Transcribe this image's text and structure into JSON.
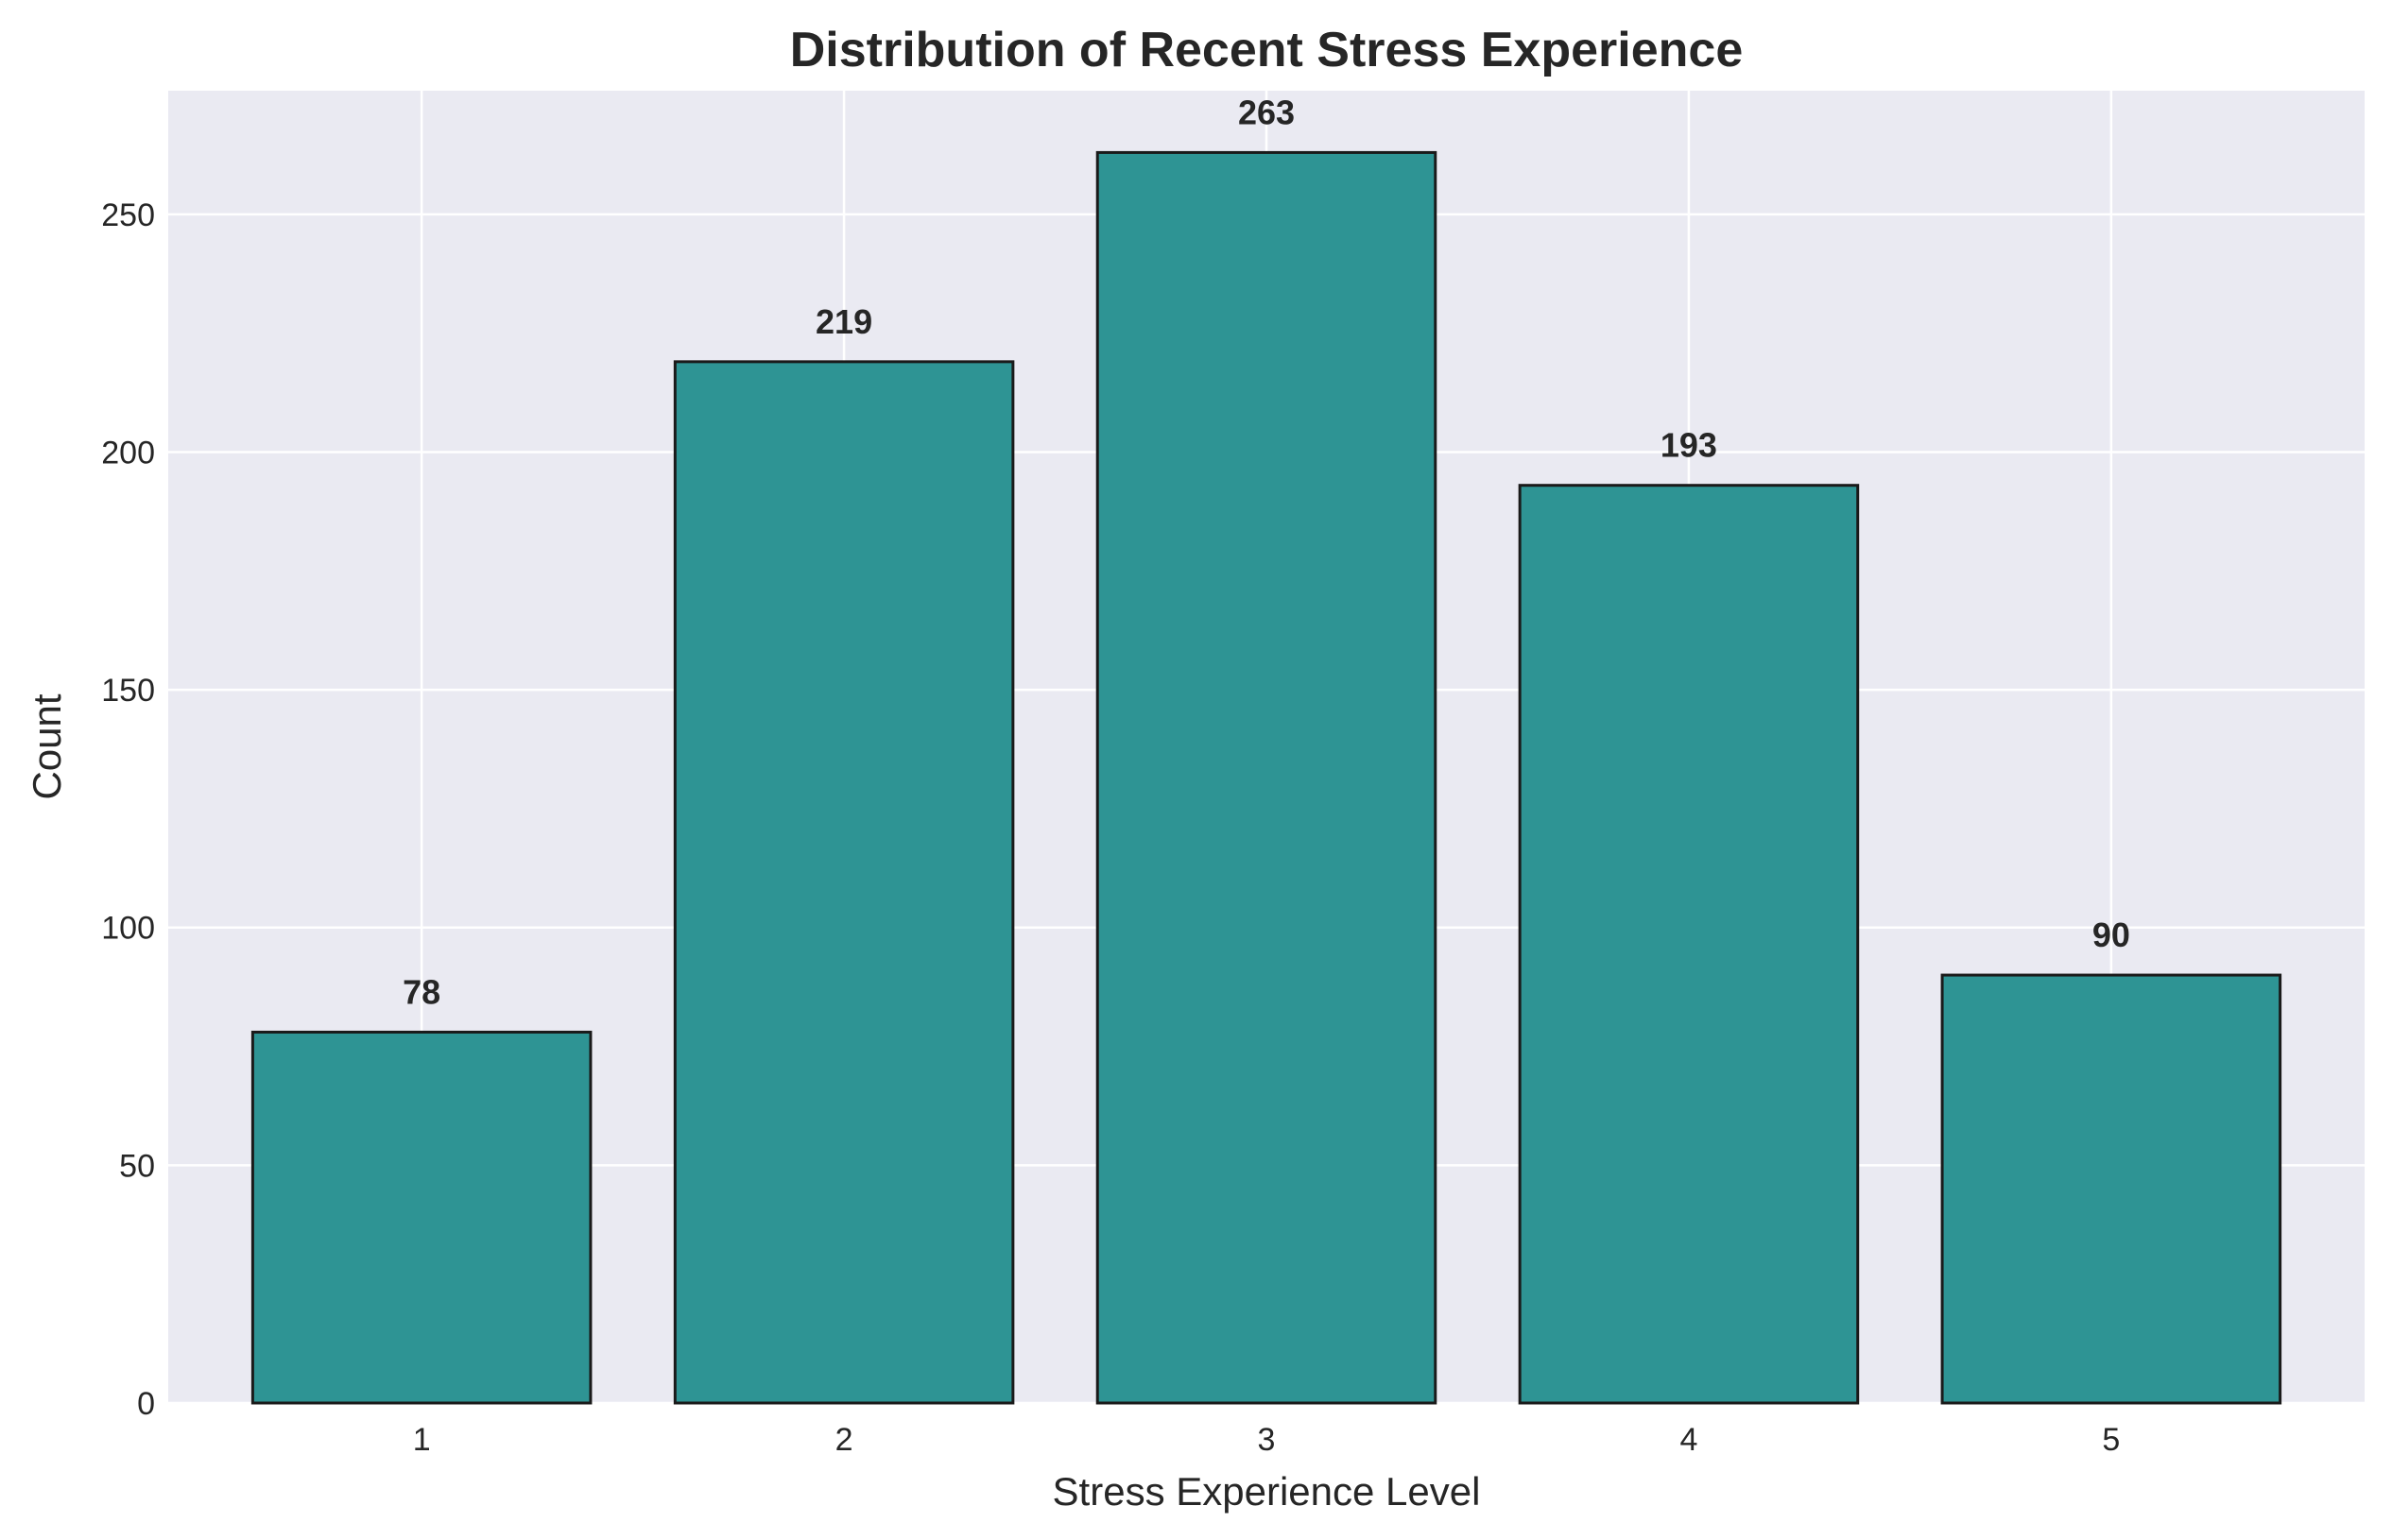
{
  "chart_data": {
    "type": "bar",
    "title": "Distribution of Recent Stress Experience",
    "xlabel": "Stress Experience Level",
    "ylabel": "Count",
    "categories": [
      "1",
      "2",
      "3",
      "4",
      "5"
    ],
    "values": [
      78,
      219,
      263,
      193,
      90
    ],
    "data_labels": [
      "78",
      "219",
      "263",
      "193",
      "90"
    ],
    "ylim": [
      0,
      276
    ],
    "yticks": [
      0,
      50,
      100,
      150,
      200,
      250
    ],
    "ytick_labels": [
      "0",
      "50",
      "100",
      "150",
      "200",
      "250"
    ],
    "grid": true,
    "legend": false,
    "colors": {
      "bar_fill": "#2e9494",
      "bar_edge": "#1a1a1a",
      "plot_background": "#eaeaf2",
      "grid": "#ffffff",
      "text": "#262626"
    }
  }
}
